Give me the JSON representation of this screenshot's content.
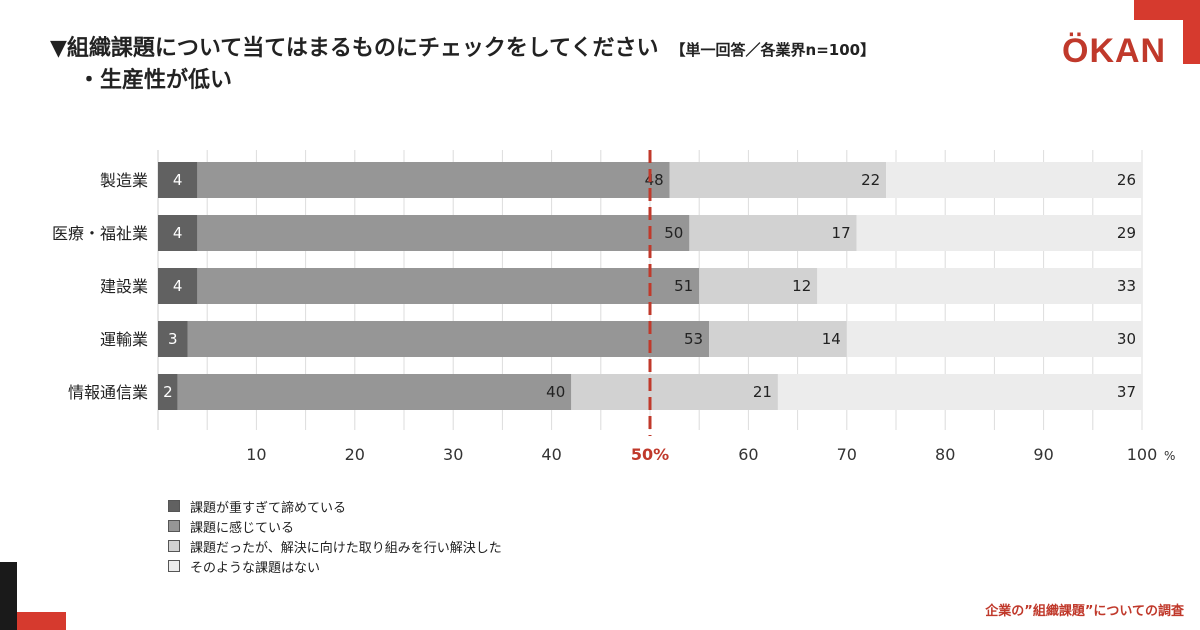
{
  "header": {
    "title": "▼組織課題について当てはまるものにチェックをしてください",
    "note": "【単一回答／各業界n=100】",
    "subtitle": "・生産性が低い"
  },
  "brand": {
    "logo": "ÖKAN",
    "accent_color": "#d63a2e"
  },
  "footer": {
    "text": "企業の”組織課題”についての調査"
  },
  "chart_data": {
    "type": "bar",
    "orientation": "horizontal",
    "stacked": true,
    "categories": [
      "製造業",
      "医療・福祉業",
      "建設業",
      "運輸業",
      "情報通信業"
    ],
    "series": [
      {
        "name": "課題が重すぎて諦めている",
        "values": [
          4,
          4,
          4,
          3,
          2
        ],
        "color": "#616161"
      },
      {
        "name": "課題に感じている",
        "values": [
          48,
          50,
          51,
          53,
          40
        ],
        "color": "#969696"
      },
      {
        "name": "課題だったが、解決に向けた取り組みを行い解決した",
        "values": [
          22,
          17,
          12,
          14,
          21
        ],
        "color": "#d2d2d2"
      },
      {
        "name": "そのような課題はない",
        "values": [
          26,
          29,
          33,
          30,
          37
        ],
        "color": "#ececec"
      }
    ],
    "xticks": [
      "10",
      "20",
      "30",
      "40",
      "50%",
      "60",
      "70",
      "80",
      "90",
      "100"
    ],
    "xtick_values": [
      10,
      20,
      30,
      40,
      50,
      60,
      70,
      80,
      90,
      100
    ],
    "x_unit": "%",
    "xlim": [
      0,
      100
    ],
    "reference_line": {
      "value": 50,
      "color": "#c0392b",
      "style": "dashed"
    },
    "grid": true,
    "legend_position": "bottom-left"
  }
}
